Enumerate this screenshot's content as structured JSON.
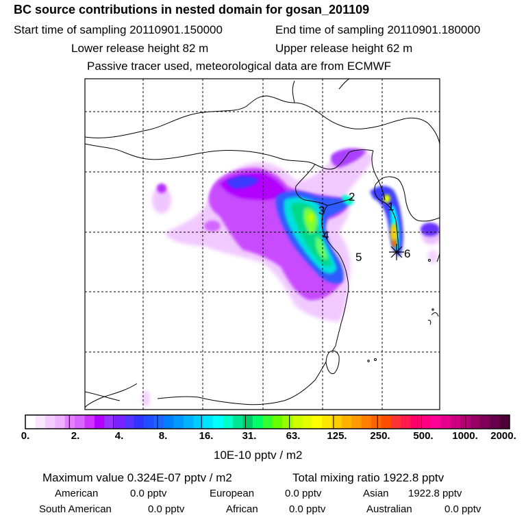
{
  "header": {
    "title": "BC  source contributions in nested domain for gosan_201109",
    "start_label": "Start time of sampling 20110901.150000",
    "end_label": "End time of sampling 20110901.180000",
    "lower_label": "Lower release height   82 m",
    "upper_label": "Upper release height   62 m",
    "note": "Passive tracer used, meteorological data are from ECMWF"
  },
  "map": {
    "labels": [
      "1",
      "2",
      "3",
      "4",
      "5",
      "6"
    ],
    "receptor_marker": "star-cross"
  },
  "colorbar": {
    "ticks": [
      "0.",
      "2.",
      "4.",
      "8.",
      "16.",
      "31.",
      "63.",
      "125.",
      "250.",
      "500.",
      "1000.",
      "2000."
    ],
    "unit": "10E-10 pptv / m2",
    "colors": [
      "#ffffff",
      "#fbe6ff",
      "#f4ccff",
      "#eeb3ff",
      "#e680ff",
      "#d966ff",
      "#cc33ff",
      "#b300ff",
      "#9933ff",
      "#7a1fff",
      "#5533ff",
      "#3333ff",
      "#1f4dff",
      "#1a66ff",
      "#0080ff",
      "#0099ff",
      "#00b3ff",
      "#00ccff",
      "#00e6ff",
      "#00ffff",
      "#00ffcc",
      "#00e699",
      "#00cc66",
      "#00ff66",
      "#33ff33",
      "#66ff00",
      "#99ff00",
      "#ccff00",
      "#e6ff00",
      "#ffff00",
      "#ffe600",
      "#ffcc00",
      "#ffb300",
      "#ff9900",
      "#ff8000",
      "#ff6600",
      "#ff4d00",
      "#ff3333",
      "#ff1a4d",
      "#ff0066",
      "#ff0080",
      "#ff0099",
      "#e6008c",
      "#cc0080",
      "#b30073",
      "#990066",
      "#800059",
      "#66004d",
      "#4d0033"
    ]
  },
  "summary": {
    "max_label": "Maximum value  0.324E-07 pptv / m2",
    "total_label": "Total mixing ratio     1922.8 pptv",
    "american_label": "American",
    "american_value": "0.0 pptv",
    "european_label": "European",
    "european_value": "0.0 pptv",
    "asian_label": "Asian",
    "asian_value": "1922.8 pptv",
    "south_american_label": "South American",
    "south_american_value": "0.0 pptv",
    "african_label": "African",
    "african_value": "0.0 pptv",
    "australian_label": "Australian",
    "australian_value": "0.0 pptv"
  }
}
